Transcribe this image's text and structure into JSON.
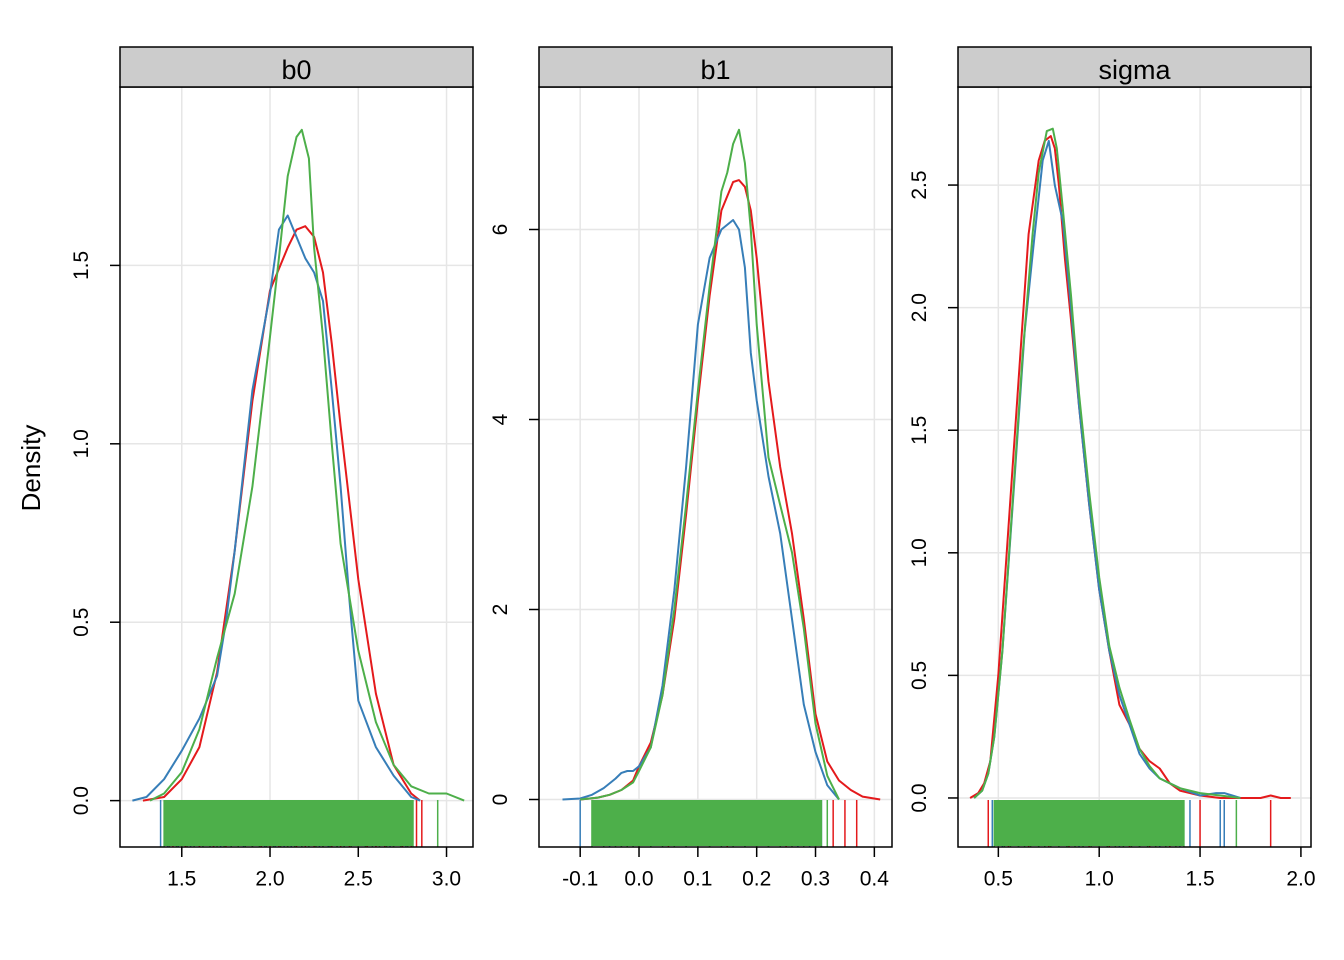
{
  "figure": {
    "ylabel": "Density"
  },
  "chart_data": [
    {
      "type": "line",
      "title": "b0",
      "xlabel": "",
      "ylabel": "Density",
      "xlim": [
        1.15,
        3.15
      ],
      "ylim": [
        -0.13,
        2.0
      ],
      "xticks": [
        1.5,
        2.0,
        2.5,
        3.0
      ],
      "xtick_labels": [
        "1.5",
        "2.0",
        "2.5",
        "3.0"
      ],
      "yticks": [
        0.0,
        0.5,
        1.0,
        1.5
      ],
      "ytick_labels": [
        "0.0",
        "0.5",
        "1.0",
        "1.5"
      ],
      "grid": true,
      "series": [
        {
          "color": "#E41A1C",
          "x": [
            1.28,
            1.4,
            1.5,
            1.6,
            1.7,
            1.8,
            1.9,
            2.0,
            2.1,
            2.15,
            2.2,
            2.25,
            2.3,
            2.35,
            2.4,
            2.5,
            2.6,
            2.7,
            2.8,
            2.85
          ],
          "y": [
            0.0,
            0.01,
            0.06,
            0.15,
            0.36,
            0.7,
            1.12,
            1.43,
            1.55,
            1.6,
            1.61,
            1.58,
            1.48,
            1.28,
            1.05,
            0.62,
            0.3,
            0.1,
            0.02,
            0.0
          ]
        },
        {
          "color": "#377EB8",
          "x": [
            1.22,
            1.3,
            1.4,
            1.5,
            1.6,
            1.65,
            1.7,
            1.75,
            1.8,
            1.9,
            2.0,
            2.05,
            2.1,
            2.15,
            2.2,
            2.25,
            2.3,
            2.35,
            2.4,
            2.45,
            2.5,
            2.6,
            2.7,
            2.8,
            2.85
          ],
          "y": [
            0.0,
            0.01,
            0.06,
            0.14,
            0.23,
            0.29,
            0.35,
            0.5,
            0.7,
            1.15,
            1.42,
            1.6,
            1.64,
            1.58,
            1.52,
            1.48,
            1.4,
            1.15,
            0.88,
            0.56,
            0.28,
            0.15,
            0.07,
            0.01,
            0.0
          ]
        },
        {
          "color": "#4DAF4A",
          "x": [
            1.32,
            1.4,
            1.5,
            1.6,
            1.7,
            1.8,
            1.9,
            2.0,
            2.05,
            2.1,
            2.15,
            2.18,
            2.22,
            2.25,
            2.3,
            2.35,
            2.4,
            2.5,
            2.6,
            2.7,
            2.8,
            2.9,
            3.0,
            3.1
          ],
          "y": [
            0.0,
            0.02,
            0.08,
            0.2,
            0.4,
            0.58,
            0.88,
            1.3,
            1.52,
            1.75,
            1.86,
            1.88,
            1.8,
            1.55,
            1.3,
            1.0,
            0.72,
            0.42,
            0.22,
            0.1,
            0.04,
            0.02,
            0.02,
            0.0
          ]
        }
      ],
      "rug": [
        {
          "color": "#E41A1C",
          "values": [
            1.45,
            1.52,
            1.6,
            1.68,
            1.75,
            1.82,
            1.9,
            1.95,
            2.0,
            2.05,
            2.1,
            2.15,
            2.2,
            2.25,
            2.3,
            2.35,
            2.4,
            2.45,
            2.5,
            2.55,
            2.6,
            2.65,
            2.7,
            2.75,
            2.8,
            2.83,
            2.86
          ]
        },
        {
          "color": "#377EB8",
          "values": [
            1.38,
            1.42,
            1.48,
            1.52,
            1.55,
            1.6,
            1.68,
            1.72,
            1.78,
            1.85,
            1.9,
            1.97,
            2.03,
            2.08,
            2.12,
            2.18,
            2.22,
            2.28,
            2.33,
            2.38,
            2.42,
            2.5,
            2.55,
            2.6,
            2.68,
            2.75,
            2.77,
            2.8
          ]
        },
        {
          "color": "#4DAF4A",
          "values": [
            1.4,
            1.43,
            1.47,
            1.5,
            1.53,
            1.57,
            1.62,
            1.66,
            1.7,
            1.74,
            1.78,
            1.82,
            1.86,
            1.9,
            1.94,
            1.98,
            2.02,
            2.06,
            2.1,
            2.14,
            2.18,
            2.22,
            2.26,
            2.3,
            2.34,
            2.38,
            2.42,
            2.46,
            2.5,
            2.54,
            2.58,
            2.62,
            2.66,
            2.7,
            2.74,
            2.78,
            2.81,
            2.95
          ]
        }
      ]
    },
    {
      "type": "line",
      "title": "b1",
      "xlabel": "",
      "ylabel": "",
      "xlim": [
        -0.17,
        0.43
      ],
      "ylim": [
        -0.5,
        7.5
      ],
      "xticks": [
        -0.1,
        0.0,
        0.1,
        0.2,
        0.3,
        0.4
      ],
      "xtick_labels": [
        "-0.1",
        "0.0",
        "0.1",
        "0.2",
        "0.3",
        "0.4"
      ],
      "yticks": [
        0,
        2,
        4,
        6
      ],
      "ytick_labels": [
        "0",
        "2",
        "4",
        "6"
      ],
      "grid": true,
      "series": [
        {
          "color": "#E41A1C",
          "x": [
            -0.1,
            -0.07,
            -0.05,
            -0.03,
            -0.01,
            0.0,
            0.02,
            0.04,
            0.06,
            0.08,
            0.1,
            0.12,
            0.14,
            0.16,
            0.17,
            0.18,
            0.19,
            0.2,
            0.22,
            0.24,
            0.26,
            0.28,
            0.3,
            0.32,
            0.34,
            0.36,
            0.38,
            0.41
          ],
          "y": [
            0.0,
            0.02,
            0.05,
            0.1,
            0.2,
            0.35,
            0.6,
            1.1,
            1.9,
            3.0,
            4.2,
            5.3,
            6.2,
            6.5,
            6.52,
            6.45,
            6.2,
            5.7,
            4.4,
            3.5,
            2.8,
            1.9,
            0.9,
            0.4,
            0.2,
            0.1,
            0.03,
            0.0
          ]
        },
        {
          "color": "#377EB8",
          "x": [
            -0.13,
            -0.1,
            -0.08,
            -0.06,
            -0.04,
            -0.03,
            -0.02,
            -0.01,
            0.0,
            0.02,
            0.04,
            0.06,
            0.08,
            0.1,
            0.12,
            0.14,
            0.16,
            0.17,
            0.18,
            0.19,
            0.2,
            0.22,
            0.24,
            0.26,
            0.28,
            0.3,
            0.32,
            0.34
          ],
          "y": [
            0.0,
            0.01,
            0.05,
            0.12,
            0.22,
            0.28,
            0.3,
            0.3,
            0.35,
            0.55,
            1.2,
            2.2,
            3.5,
            5.0,
            5.7,
            6.0,
            6.1,
            6.0,
            5.6,
            4.7,
            4.2,
            3.4,
            2.8,
            1.9,
            1.0,
            0.5,
            0.15,
            0.0
          ]
        },
        {
          "color": "#4DAF4A",
          "x": [
            -0.1,
            -0.07,
            -0.05,
            -0.03,
            -0.01,
            0.0,
            0.02,
            0.04,
            0.06,
            0.08,
            0.1,
            0.12,
            0.14,
            0.15,
            0.16,
            0.17,
            0.18,
            0.19,
            0.2,
            0.22,
            0.24,
            0.26,
            0.28,
            0.3,
            0.32,
            0.34
          ],
          "y": [
            0.0,
            0.02,
            0.05,
            0.1,
            0.18,
            0.3,
            0.55,
            1.1,
            2.0,
            3.1,
            4.3,
            5.4,
            6.4,
            6.6,
            6.9,
            7.05,
            6.7,
            6.0,
            5.0,
            3.6,
            3.1,
            2.6,
            1.8,
            0.8,
            0.25,
            0.0
          ]
        }
      ],
      "rug": [
        {
          "color": "#E41A1C",
          "values": [
            -0.06,
            -0.02,
            0.0,
            0.05,
            0.1,
            0.15,
            0.2,
            0.25,
            0.3,
            0.33,
            0.35,
            0.37
          ]
        },
        {
          "color": "#377EB8",
          "values": [
            -0.1,
            -0.05,
            -0.03,
            -0.01,
            0.02,
            0.08,
            0.12,
            0.18,
            0.22,
            0.27,
            0.29,
            0.31
          ]
        },
        {
          "color": "#4DAF4A",
          "values": [
            -0.08,
            -0.06,
            -0.04,
            -0.03,
            -0.02,
            -0.01,
            0.0,
            0.02,
            0.04,
            0.06,
            0.08,
            0.1,
            0.12,
            0.14,
            0.16,
            0.18,
            0.2,
            0.22,
            0.24,
            0.26,
            0.28,
            0.3,
            0.31,
            0.32
          ]
        }
      ]
    },
    {
      "type": "line",
      "title": "sigma",
      "xlabel": "",
      "ylabel": "",
      "xlim": [
        0.3,
        2.05
      ],
      "ylim": [
        -0.2,
        2.9
      ],
      "xticks": [
        0.5,
        1.0,
        1.5,
        2.0
      ],
      "xtick_labels": [
        "0.5",
        "1.0",
        "1.5",
        "2.0"
      ],
      "yticks": [
        0.0,
        0.5,
        1.0,
        1.5,
        2.0,
        2.5
      ],
      "ytick_labels": [
        "0.0",
        "0.5",
        "1.0",
        "1.5",
        "2.0",
        "2.5"
      ],
      "grid": true,
      "series": [
        {
          "color": "#E41A1C",
          "x": [
            0.36,
            0.4,
            0.43,
            0.46,
            0.5,
            0.55,
            0.6,
            0.65,
            0.7,
            0.73,
            0.76,
            0.78,
            0.8,
            0.83,
            0.86,
            0.9,
            0.95,
            1.0,
            1.05,
            1.1,
            1.15,
            1.2,
            1.25,
            1.3,
            1.35,
            1.4,
            1.5,
            1.6,
            1.7,
            1.8,
            1.85,
            1.9,
            1.95
          ],
          "y": [
            0.0,
            0.02,
            0.06,
            0.15,
            0.5,
            1.1,
            1.7,
            2.3,
            2.6,
            2.68,
            2.7,
            2.65,
            2.5,
            2.2,
            1.95,
            1.6,
            1.2,
            0.85,
            0.6,
            0.38,
            0.3,
            0.2,
            0.15,
            0.12,
            0.06,
            0.03,
            0.01,
            0.0,
            0.0,
            0.0,
            0.01,
            0.0,
            0.0
          ]
        },
        {
          "color": "#377EB8",
          "x": [
            0.38,
            0.42,
            0.45,
            0.48,
            0.52,
            0.58,
            0.63,
            0.68,
            0.72,
            0.75,
            0.78,
            0.82,
            0.86,
            0.9,
            0.95,
            1.0,
            1.05,
            1.1,
            1.15,
            1.2,
            1.25,
            1.3,
            1.4,
            1.5,
            1.58,
            1.62,
            1.66,
            1.7
          ],
          "y": [
            0.0,
            0.03,
            0.1,
            0.25,
            0.6,
            1.3,
            1.9,
            2.3,
            2.6,
            2.68,
            2.5,
            2.35,
            2.0,
            1.6,
            1.2,
            0.85,
            0.6,
            0.42,
            0.3,
            0.18,
            0.12,
            0.08,
            0.04,
            0.01,
            0.02,
            0.02,
            0.01,
            0.0
          ]
        },
        {
          "color": "#4DAF4A",
          "x": [
            0.38,
            0.42,
            0.45,
            0.48,
            0.52,
            0.57,
            0.62,
            0.67,
            0.7,
            0.74,
            0.77,
            0.79,
            0.82,
            0.86,
            0.9,
            0.95,
            1.0,
            1.05,
            1.1,
            1.15,
            1.2,
            1.25,
            1.3,
            1.4,
            1.5,
            1.6,
            1.7
          ],
          "y": [
            0.0,
            0.03,
            0.1,
            0.25,
            0.6,
            1.2,
            1.8,
            2.3,
            2.55,
            2.72,
            2.73,
            2.65,
            2.4,
            2.05,
            1.65,
            1.25,
            0.9,
            0.62,
            0.45,
            0.32,
            0.2,
            0.13,
            0.08,
            0.04,
            0.02,
            0.01,
            0.0
          ]
        }
      ],
      "rug": [
        {
          "color": "#E41A1C",
          "values": [
            0.45,
            0.55,
            0.65,
            0.75,
            0.85,
            0.95,
            1.05,
            1.15,
            1.25,
            1.35,
            1.5,
            1.85
          ]
        },
        {
          "color": "#377EB8",
          "values": [
            0.47,
            0.52,
            0.6,
            0.7,
            0.8,
            0.9,
            1.0,
            1.1,
            1.2,
            1.3,
            1.4,
            1.45,
            1.6,
            1.62
          ]
        },
        {
          "color": "#4DAF4A",
          "values": [
            0.48,
            0.5,
            0.53,
            0.56,
            0.6,
            0.63,
            0.66,
            0.7,
            0.73,
            0.76,
            0.8,
            0.84,
            0.88,
            0.92,
            0.96,
            1.0,
            1.04,
            1.08,
            1.12,
            1.16,
            1.2,
            1.24,
            1.28,
            1.33,
            1.38,
            1.42,
            1.68
          ]
        }
      ]
    }
  ]
}
